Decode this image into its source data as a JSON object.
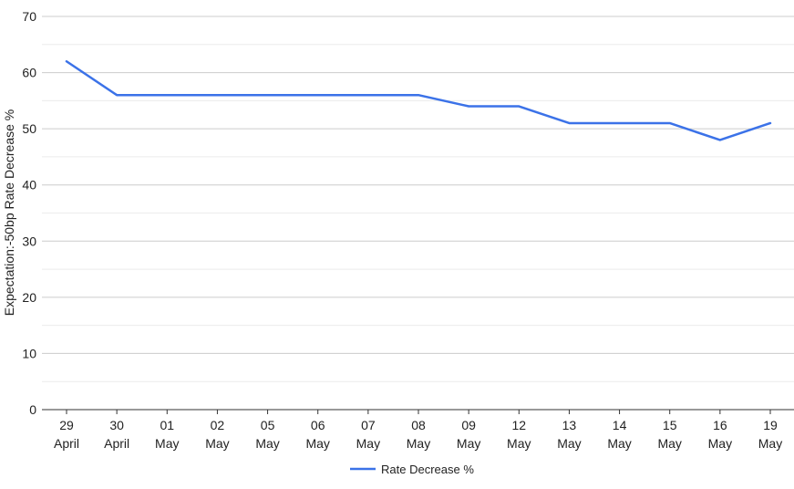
{
  "chart_data": {
    "type": "line",
    "categories": [
      [
        "29",
        "April"
      ],
      [
        "30",
        "April"
      ],
      [
        "01",
        "May"
      ],
      [
        "02",
        "May"
      ],
      [
        "05",
        "May"
      ],
      [
        "06",
        "May"
      ],
      [
        "07",
        "May"
      ],
      [
        "08",
        "May"
      ],
      [
        "09",
        "May"
      ],
      [
        "12",
        "May"
      ],
      [
        "13",
        "May"
      ],
      [
        "14",
        "May"
      ],
      [
        "15",
        "May"
      ],
      [
        "16",
        "May"
      ],
      [
        "19",
        "May"
      ]
    ],
    "series": [
      {
        "name": "Rate Decrease %",
        "color": "#3b72e8",
        "values": [
          62,
          56,
          56,
          56,
          56,
          56,
          56,
          56,
          54,
          54,
          51,
          51,
          51,
          48,
          51
        ]
      }
    ],
    "ylabel": "Expectation:-50bp Rate Decrease %",
    "xlabel": "",
    "ylim": [
      0,
      70
    ],
    "yticks": [
      0,
      10,
      20,
      30,
      40,
      50,
      60,
      70
    ],
    "grid": true,
    "minor_grid": true,
    "legend_position": "bottom"
  }
}
